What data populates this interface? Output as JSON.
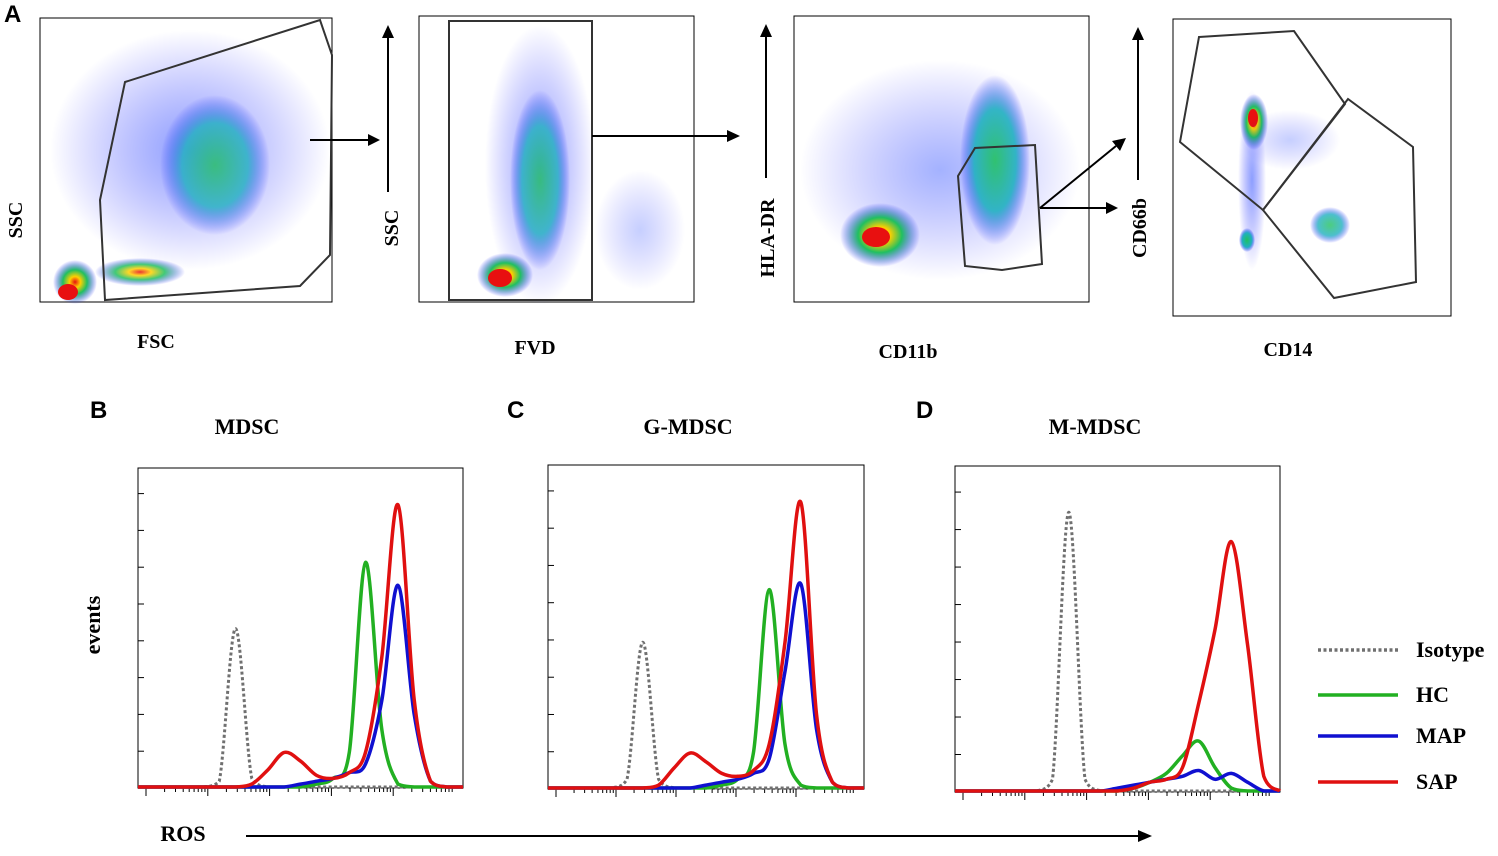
{
  "colors": {
    "axis": "#000000",
    "gate": "#333333",
    "isotype": "#707070",
    "hc": "#22b022",
    "map": "#1010d0",
    "sap": "#e01010",
    "density_low": "#1a1aff",
    "density_mid": "#20c060",
    "density_high": "#ffd000",
    "density_peak": "#e81010"
  },
  "panel_letters": {
    "a": "A",
    "b": "B",
    "c": "C",
    "d": "D"
  },
  "scatter_panels": [
    {
      "id": "scatter-fsc-ssc",
      "xlabel": "FSC",
      "ylabel": "SSC"
    },
    {
      "id": "scatter-fvd-ssc",
      "xlabel": "FVD",
      "ylabel": "SSC"
    },
    {
      "id": "scatter-cd11b-hladr",
      "xlabel": "CD11b",
      "ylabel": "HLA-DR"
    },
    {
      "id": "scatter-cd14-cd66b",
      "xlabel": "CD14",
      "ylabel": "CD66b"
    }
  ],
  "chart_data": [
    {
      "type": "line",
      "title": "MDSC",
      "xlabel": "ROS",
      "ylabel": "events",
      "x": [
        0,
        5,
        10,
        15,
        20,
        25,
        30,
        35,
        40,
        45,
        50,
        55,
        60,
        65,
        70,
        75,
        80,
        85,
        90,
        95,
        100
      ],
      "ylim": [
        0,
        100
      ],
      "series": [
        {
          "name": "Isotype",
          "values": [
            0,
            0,
            0,
            0,
            0,
            2,
            55,
            3,
            0,
            0,
            0,
            0,
            0,
            0,
            0,
            0,
            0,
            0,
            0,
            0,
            0
          ]
        },
        {
          "name": "HC",
          "values": [
            0,
            0,
            0,
            0,
            0,
            0,
            0,
            0,
            0,
            0,
            0,
            1,
            3,
            12,
            78,
            20,
            1,
            0,
            0,
            0,
            0
          ]
        },
        {
          "name": "MAP",
          "values": [
            0,
            0,
            0,
            0,
            0,
            0,
            0,
            0,
            0,
            0,
            1,
            2,
            3,
            5,
            8,
            30,
            70,
            25,
            2,
            0,
            0
          ]
        },
        {
          "name": "SAP",
          "values": [
            0,
            0,
            0,
            0,
            0,
            0,
            0,
            1,
            6,
            12,
            9,
            4,
            3,
            5,
            12,
            45,
            98,
            30,
            2,
            0,
            0
          ]
        }
      ]
    },
    {
      "type": "line",
      "title": "G-MDSC",
      "xlabel": "ROS",
      "ylabel": "events",
      "x": [
        0,
        5,
        10,
        15,
        20,
        25,
        30,
        35,
        40,
        45,
        50,
        55,
        60,
        65,
        70,
        75,
        80,
        85,
        90,
        95,
        100
      ],
      "ylim": [
        0,
        100
      ],
      "series": [
        {
          "name": "Isotype",
          "values": [
            0,
            0,
            0,
            0,
            0,
            3,
            50,
            3,
            0,
            0,
            0,
            0,
            0,
            0,
            0,
            0,
            0,
            0,
            0,
            0,
            0
          ]
        },
        {
          "name": "HC",
          "values": [
            0,
            0,
            0,
            0,
            0,
            0,
            0,
            0,
            0,
            0,
            0,
            1,
            3,
            12,
            68,
            15,
            1,
            0,
            0,
            0,
            0
          ]
        },
        {
          "name": "MAP",
          "values": [
            0,
            0,
            0,
            0,
            0,
            0,
            0,
            0,
            0,
            0,
            1,
            2,
            3,
            5,
            10,
            40,
            70,
            20,
            2,
            0,
            0
          ]
        },
        {
          "name": "SAP",
          "values": [
            0,
            0,
            0,
            0,
            0,
            0,
            0,
            1,
            7,
            12,
            9,
            5,
            4,
            6,
            15,
            50,
            98,
            25,
            2,
            0,
            0
          ]
        }
      ]
    },
    {
      "type": "line",
      "title": "M-MDSC",
      "xlabel": "ROS",
      "ylabel": "events",
      "x": [
        0,
        5,
        10,
        15,
        20,
        25,
        30,
        35,
        40,
        45,
        50,
        55,
        60,
        65,
        70,
        75,
        80,
        85,
        90,
        95,
        100
      ],
      "ylim": [
        0,
        100
      ],
      "series": [
        {
          "name": "Isotype",
          "values": [
            0,
            0,
            0,
            0,
            0,
            0,
            4,
            95,
            4,
            0,
            0,
            0,
            0,
            0,
            0,
            0,
            0,
            0,
            0,
            0,
            0
          ]
        },
        {
          "name": "HC",
          "values": [
            0,
            0,
            0,
            0,
            0,
            0,
            0,
            0,
            0,
            0,
            0,
            1,
            3,
            6,
            12,
            17,
            8,
            1,
            0,
            0,
            0
          ]
        },
        {
          "name": "MAP",
          "values": [
            0,
            0,
            0,
            0,
            0,
            0,
            0,
            0,
            0,
            0,
            1,
            2,
            3,
            4,
            5,
            7,
            4,
            6,
            3,
            0,
            0
          ]
        },
        {
          "name": "SAP",
          "values": [
            0,
            0,
            0,
            0,
            0,
            0,
            0,
            0,
            0,
            0,
            0,
            1,
            3,
            4,
            8,
            30,
            55,
            85,
            50,
            5,
            0
          ]
        }
      ]
    }
  ],
  "legend": [
    {
      "name": "Isotype",
      "style": "dotted"
    },
    {
      "name": "HC",
      "style": "solid"
    },
    {
      "name": "MAP",
      "style": "solid"
    },
    {
      "name": "SAP",
      "style": "solid"
    }
  ]
}
